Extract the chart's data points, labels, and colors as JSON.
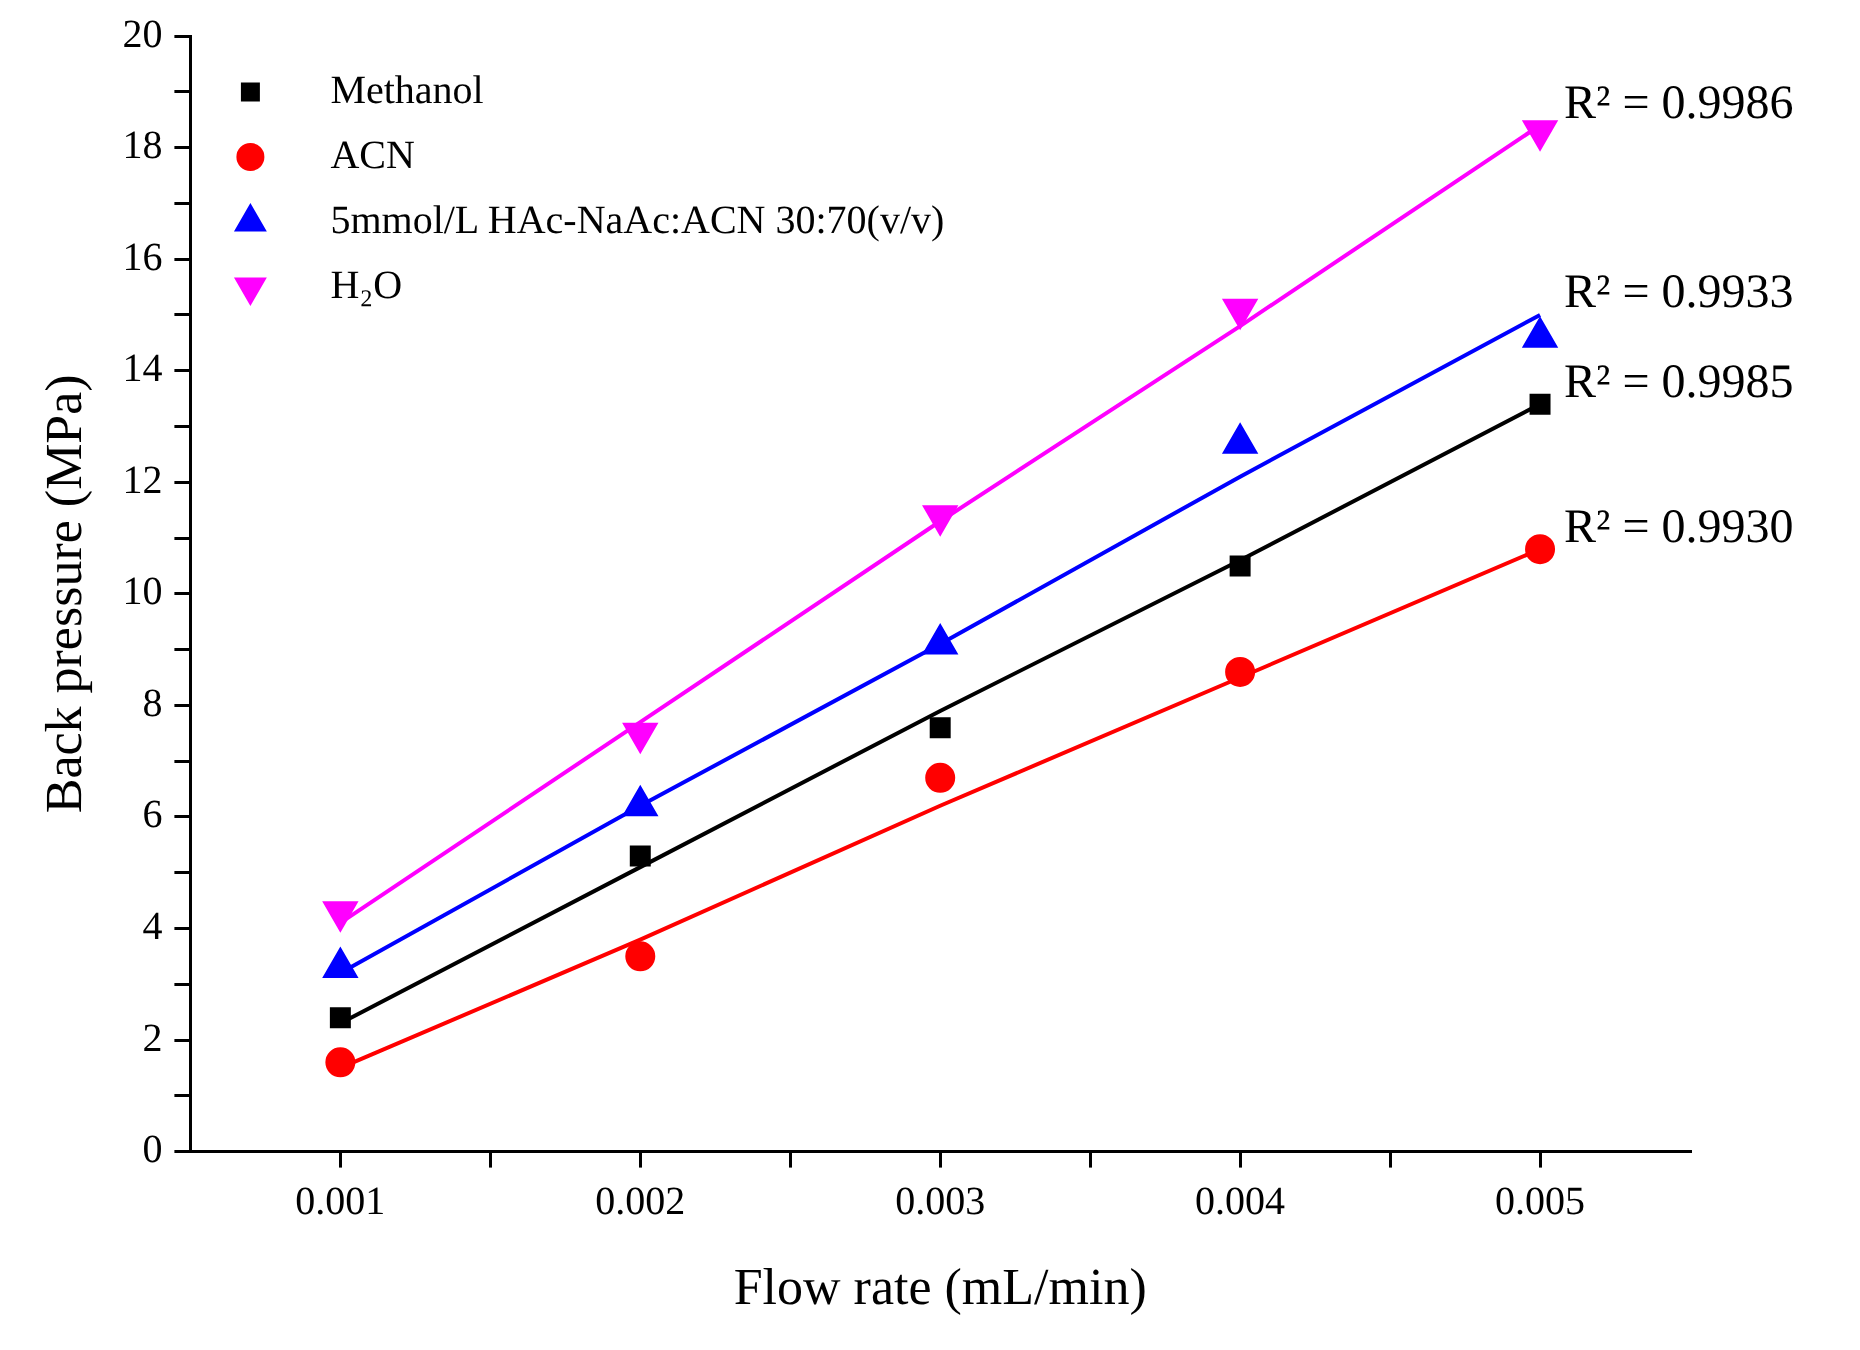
{
  "chart_data": {
    "type": "scatter",
    "xlabel": "Flow rate (mL/min)",
    "ylabel": "Back pressure (MPa)",
    "xlim": [
      0.0005,
      0.0055
    ],
    "xticks": [
      {
        "value": 0.001,
        "label": "0.001"
      },
      {
        "value": 0.0015,
        "label": null
      },
      {
        "value": 0.002,
        "label": "0.002"
      },
      {
        "value": 0.0025,
        "label": null
      },
      {
        "value": 0.003,
        "label": "0.003"
      },
      {
        "value": 0.0035,
        "label": null
      },
      {
        "value": 0.004,
        "label": "0.004"
      },
      {
        "value": 0.0045,
        "label": null
      },
      {
        "value": 0.005,
        "label": "0.005"
      }
    ],
    "ylim": [
      0,
      20
    ],
    "yticks": [
      0,
      {
        "value": 1,
        "label": null
      },
      2,
      {
        "value": 3,
        "label": null
      },
      4,
      {
        "value": 5,
        "label": null
      },
      6,
      {
        "value": 7,
        "label": null
      },
      8,
      {
        "value": 9,
        "label": null
      },
      10,
      {
        "value": 11,
        "label": null
      },
      12,
      {
        "value": 13,
        "label": null
      },
      14,
      {
        "value": 15,
        "label": null
      },
      16,
      {
        "value": 17,
        "label": null
      },
      18,
      {
        "value": 19,
        "label": null
      },
      20
    ],
    "x": [
      0.001,
      0.002,
      0.003,
      0.004,
      0.005
    ],
    "legend": "top left",
    "grid": false,
    "series": [
      {
        "name": "Methanol",
        "type": "scatter",
        "marker": "square",
        "color": "#000000",
        "values": [
          2.4,
          5.3,
          7.6,
          10.5,
          13.4
        ]
      },
      {
        "name": "ACN",
        "type": "scatter",
        "marker": "circle",
        "color": "#ff0000",
        "values": [
          1.6,
          3.5,
          6.7,
          8.6,
          10.8
        ]
      },
      {
        "name": "5mmol/L HAc-NaAc:ACN 30:70(v/v)",
        "type": "scatter",
        "marker": "triangle",
        "color": "#0000ff",
        "values": [
          3.3,
          6.2,
          9.1,
          12.7,
          14.6
        ]
      },
      {
        "name": "H₂O",
        "type": "scatter",
        "marker": "triangle-down",
        "color": "#ff00ff",
        "values": [
          4.3,
          7.5,
          11.4,
          15.1,
          18.3
        ]
      },
      {
        "type": "line",
        "marker": "none",
        "color": "#000000",
        "values": [
          2.3,
          5.1,
          7.9,
          10.6,
          13.4
        ]
      },
      {
        "type": "line",
        "marker": "none",
        "color": "#ff0000",
        "values": [
          1.5,
          3.8,
          6.2,
          8.5,
          10.8
        ]
      },
      {
        "type": "line",
        "marker": "none",
        "color": "#0000ff",
        "values": [
          3.2,
          6.2,
          9.1,
          12.1,
          15.0
        ]
      },
      {
        "type": "line",
        "marker": "none",
        "color": "#ff00ff",
        "values": [
          4.1,
          7.7,
          11.3,
          14.8,
          18.4
        ]
      }
    ],
    "annotations": [
      "R² = 0.9986",
      "R² = 0.9933",
      "R² = 0.9985",
      "R² = 0.9930"
    ]
  }
}
